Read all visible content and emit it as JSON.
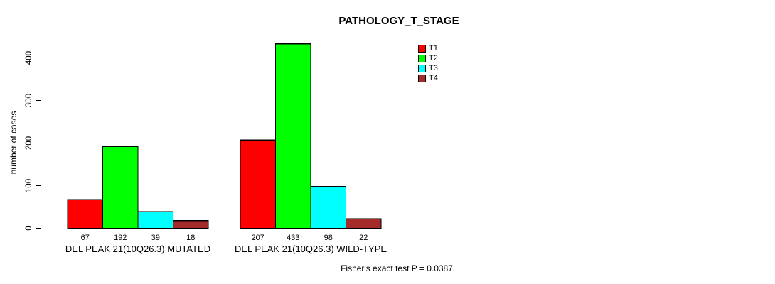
{
  "chart_data": {
    "type": "bar",
    "title": "PATHOLOGY_T_STAGE",
    "ylabel": "number of cases",
    "xlabel": "",
    "ylim": [
      0,
      440
    ],
    "yticks": [
      0,
      100,
      200,
      300,
      400
    ],
    "grid": false,
    "legend_position": "top-right",
    "bar_value_labels_shown": true,
    "categories": [
      "DEL PEAK 21(10Q26.3) MUTATED",
      "DEL PEAK 21(10Q26.3) WILD-TYPE"
    ],
    "series": [
      {
        "name": "T1",
        "color": "#ff0000",
        "values": [
          67,
          207
        ]
      },
      {
        "name": "T2",
        "color": "#00ff00",
        "values": [
          192,
          433
        ]
      },
      {
        "name": "T3",
        "color": "#00ffff",
        "values": [
          39,
          98
        ]
      },
      {
        "name": "T4",
        "color": "#a52a2a",
        "values": [
          18,
          22
        ]
      }
    ],
    "annotation": "Fisher's exact test P = 0.0387"
  },
  "colors": {
    "background": "#ffffff",
    "axis": "#000000",
    "bar_border": "#000000",
    "text": "#000000"
  }
}
